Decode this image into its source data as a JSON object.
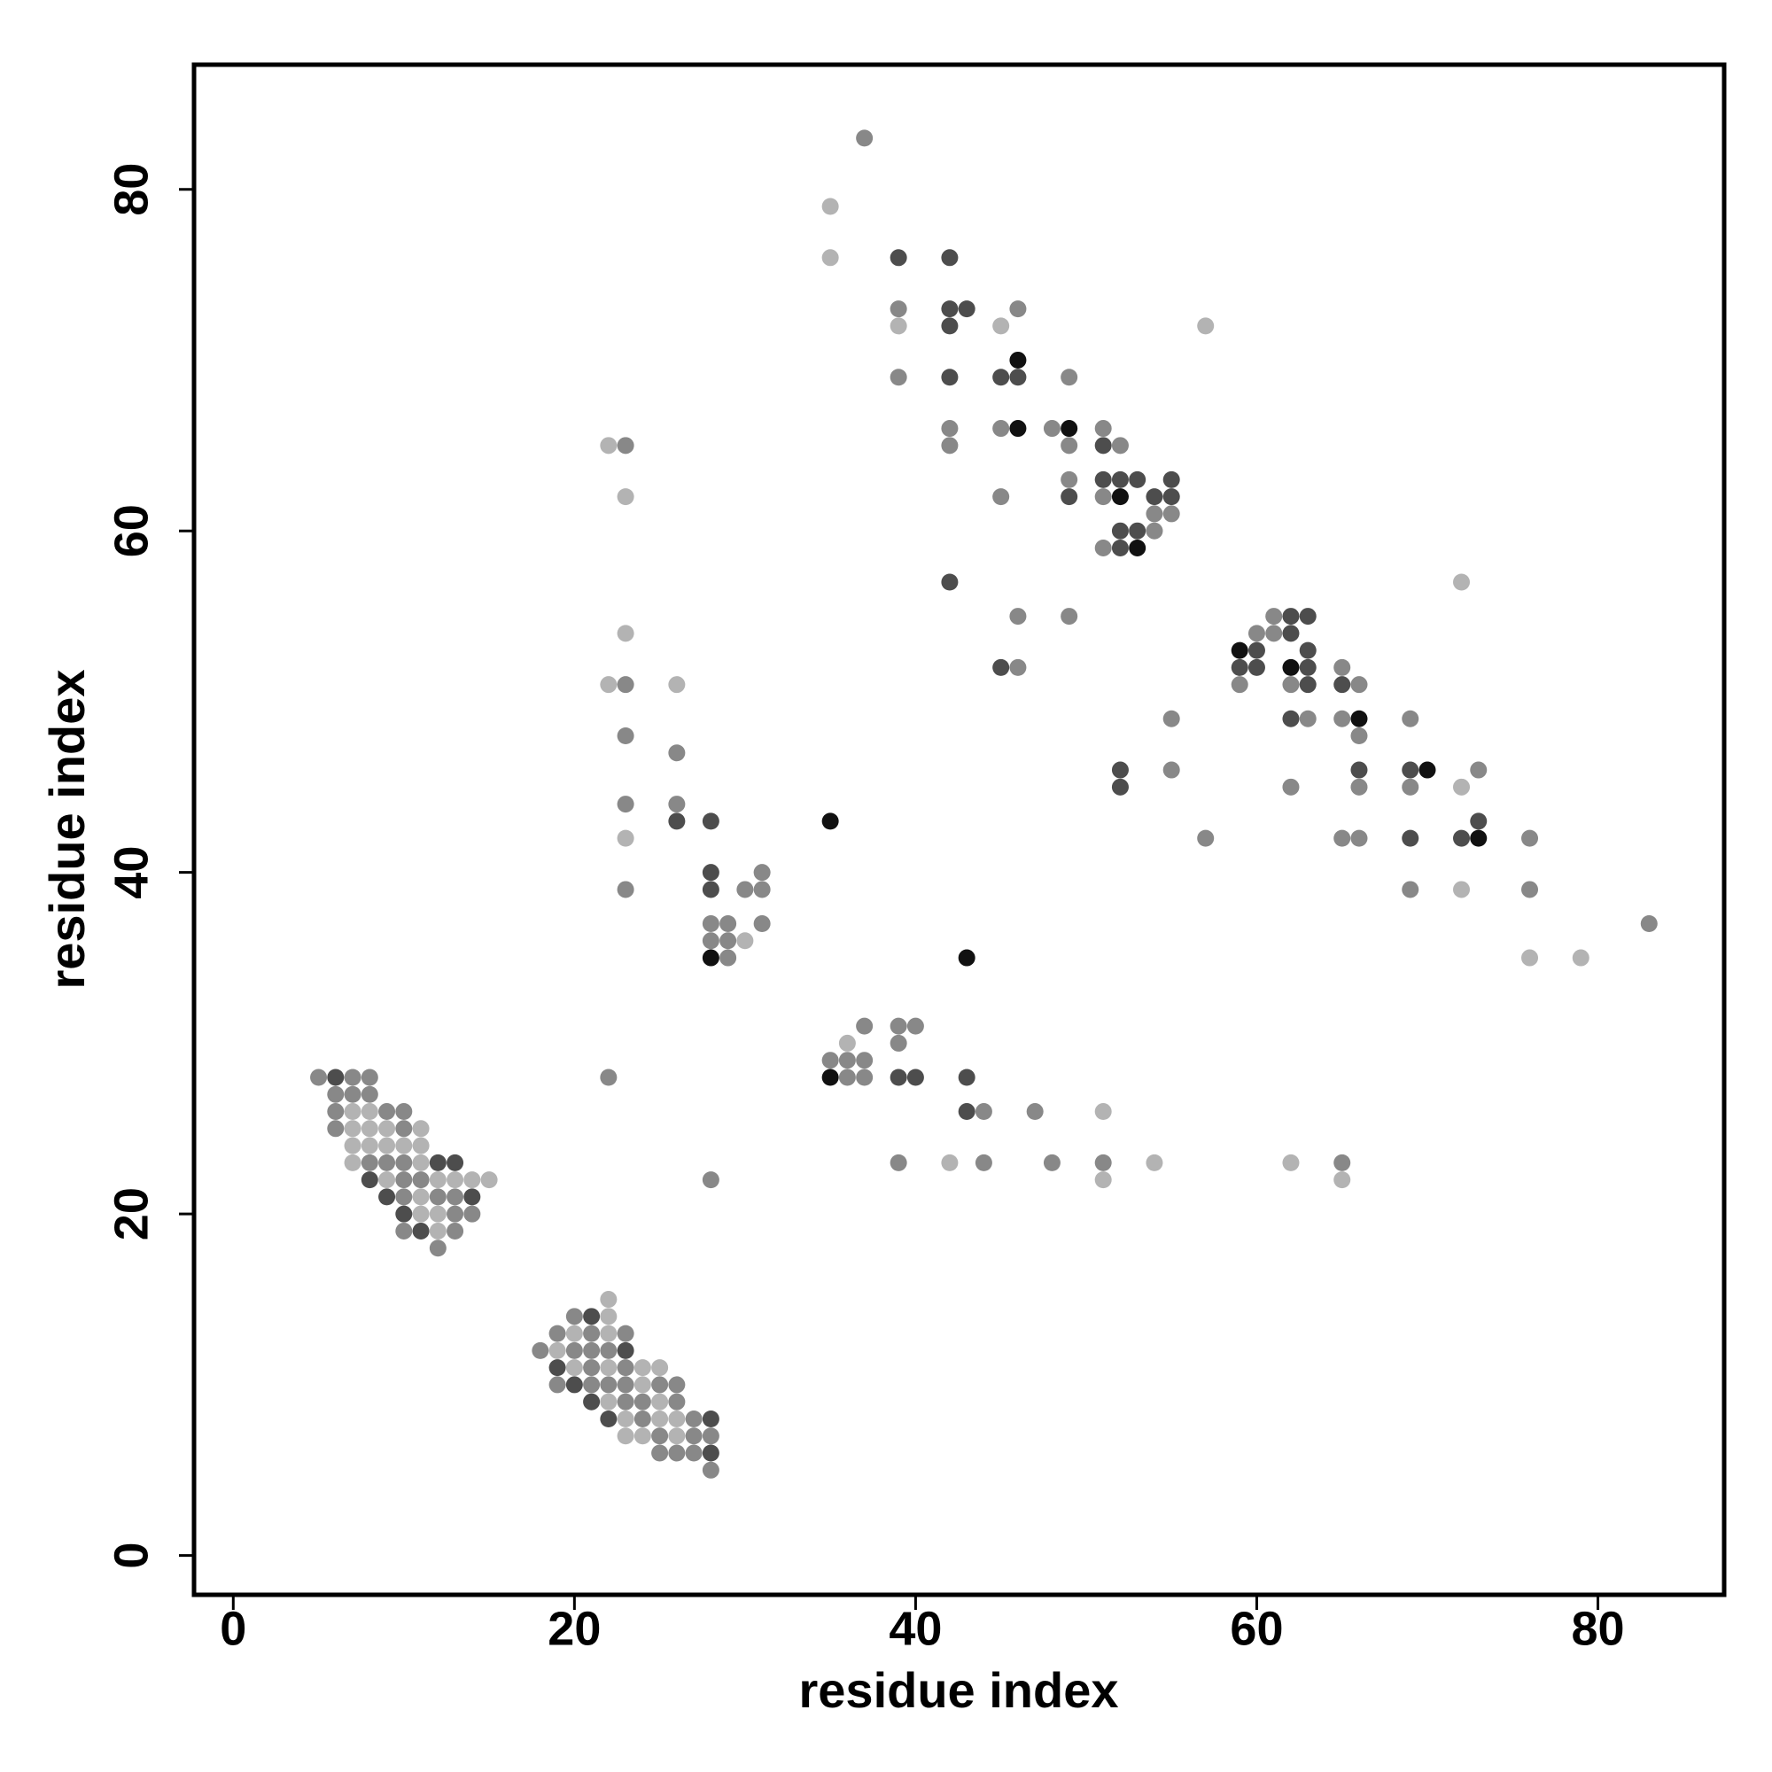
{
  "chart_data": {
    "type": "scatter",
    "x_label": "residue index",
    "y_label": "residue index",
    "xlim": [
      -2.3,
      87.4
    ],
    "ylim": [
      -2.3,
      87.3
    ],
    "xticks": [
      0,
      20,
      40,
      60,
      80
    ],
    "yticks": [
      0,
      20,
      40,
      60,
      80
    ],
    "grid": false,
    "series": [
      {
        "color": "#b3b3b3",
        "x": [
          7,
          8,
          7,
          8,
          9,
          11,
          7,
          8,
          9,
          10,
          11,
          7,
          11,
          9,
          12,
          13,
          14,
          15,
          11,
          11,
          12,
          12,
          22,
          22,
          20,
          22,
          19,
          20,
          22,
          24,
          25,
          24,
          22,
          25,
          23,
          25,
          26,
          23,
          24,
          26,
          30,
          22,
          23,
          23,
          22,
          26,
          23,
          36,
          51,
          42,
          54,
          62,
          51,
          65,
          35,
          35,
          39,
          45,
          57,
          72,
          72,
          72,
          76,
          79
        ],
        "values": [
          26,
          26,
          25,
          25,
          25,
          25,
          24,
          24,
          24,
          24,
          24,
          23,
          23,
          22,
          22,
          22,
          22,
          22,
          21,
          20,
          20,
          19,
          15,
          14,
          13,
          13,
          12,
          11,
          11,
          11,
          11,
          10,
          9,
          9,
          8,
          8,
          8,
          7,
          7,
          7,
          36,
          65,
          62,
          54,
          51,
          51,
          42,
          30,
          26,
          23,
          23,
          23,
          22,
          22,
          79,
          76,
          72,
          72,
          72,
          57,
          45,
          39,
          35,
          35
        ]
      },
      {
        "color": "#888888",
        "x": [
          5,
          7,
          8,
          6,
          7,
          8,
          6,
          9,
          10,
          6,
          10,
          8,
          9,
          10,
          10,
          11,
          10,
          12,
          13,
          13,
          14,
          10,
          13,
          12,
          20,
          19,
          21,
          23,
          18,
          20,
          21,
          22,
          21,
          23,
          19,
          21,
          22,
          23,
          25,
          26,
          23,
          24,
          26,
          24,
          27,
          25,
          27,
          28,
          25,
          26,
          27,
          28,
          22,
          28,
          23,
          23,
          23,
          26,
          23,
          26,
          31,
          23,
          30,
          31,
          28,
          29,
          31,
          28,
          29,
          29,
          37,
          39,
          40,
          39,
          35,
          36,
          37,
          36,
          37,
          44,
          47,
          39,
          44,
          48,
          51,
          65,
          37,
          39,
          46,
          39,
          49,
          42,
          45,
          48,
          51,
          42,
          49,
          52,
          49,
          45,
          51,
          54,
          55,
          54,
          51,
          46,
          49,
          46,
          61,
          60,
          61,
          65,
          59,
          62,
          66,
          55,
          63,
          65,
          69,
          66,
          55,
          73,
          62,
          66,
          69,
          57,
          65,
          66,
          76,
          69,
          76,
          83
        ],
        "values": [
          28,
          28,
          28,
          27,
          27,
          27,
          26,
          26,
          26,
          25,
          25,
          23,
          23,
          23,
          22,
          22,
          21,
          21,
          21,
          20,
          20,
          19,
          19,
          18,
          14,
          13,
          13,
          13,
          12,
          12,
          12,
          12,
          11,
          11,
          10,
          10,
          10,
          10,
          10,
          10,
          9,
          9,
          9,
          8,
          8,
          7,
          7,
          7,
          6,
          6,
          6,
          5,
          28,
          22,
          65,
          51,
          48,
          47,
          44,
          44,
          40,
          39,
          39,
          39,
          37,
          37,
          37,
          36,
          36,
          35,
          31,
          31,
          31,
          30,
          29,
          29,
          29,
          28,
          28,
          26,
          26,
          23,
          23,
          23,
          23,
          23,
          83,
          73,
          73,
          69,
          69,
          66,
          66,
          66,
          66,
          65,
          65,
          65,
          63,
          62,
          62,
          61,
          61,
          60,
          59,
          55,
          55,
          52,
          55,
          54,
          54,
          52,
          51,
          51,
          51,
          49,
          49,
          49,
          49,
          48,
          46,
          46,
          45,
          45,
          45,
          42,
          42,
          42,
          42,
          39,
          39,
          37
        ]
      },
      {
        "color": "#4d4d4d",
        "x": [
          6,
          12,
          13,
          8,
          9,
          14,
          10,
          11,
          21,
          23,
          19,
          20,
          21,
          22,
          28,
          28,
          26,
          28,
          28,
          28,
          39,
          40,
          43,
          43,
          39,
          42,
          42,
          43,
          42,
          42,
          45,
          46,
          51,
          51,
          52,
          53,
          55,
          49,
          54,
          55,
          52,
          53,
          52,
          42,
          45,
          62,
          63,
          62,
          60,
          63,
          59,
          60,
          63,
          63,
          65,
          62,
          52,
          66,
          69,
          52,
          73,
          69,
          72
        ],
        "values": [
          28,
          23,
          23,
          22,
          21,
          21,
          20,
          19,
          14,
          12,
          11,
          10,
          9,
          8,
          8,
          6,
          43,
          43,
          40,
          39,
          28,
          28,
          28,
          26,
          76,
          76,
          73,
          73,
          72,
          69,
          69,
          69,
          65,
          63,
          63,
          63,
          63,
          62,
          62,
          62,
          60,
          60,
          59,
          57,
          52,
          55,
          55,
          54,
          53,
          53,
          52,
          52,
          52,
          51,
          51,
          49,
          46,
          46,
          46,
          45,
          43,
          42,
          42
        ]
      },
      {
        "color": "#111111",
        "x": [
          28,
          35,
          43,
          35,
          46,
          46,
          49,
          52,
          53,
          59,
          62,
          66,
          70,
          73
        ],
        "values": [
          35,
          43,
          35,
          28,
          70,
          66,
          66,
          62,
          59,
          53,
          52,
          49,
          46,
          42
        ]
      }
    ]
  }
}
